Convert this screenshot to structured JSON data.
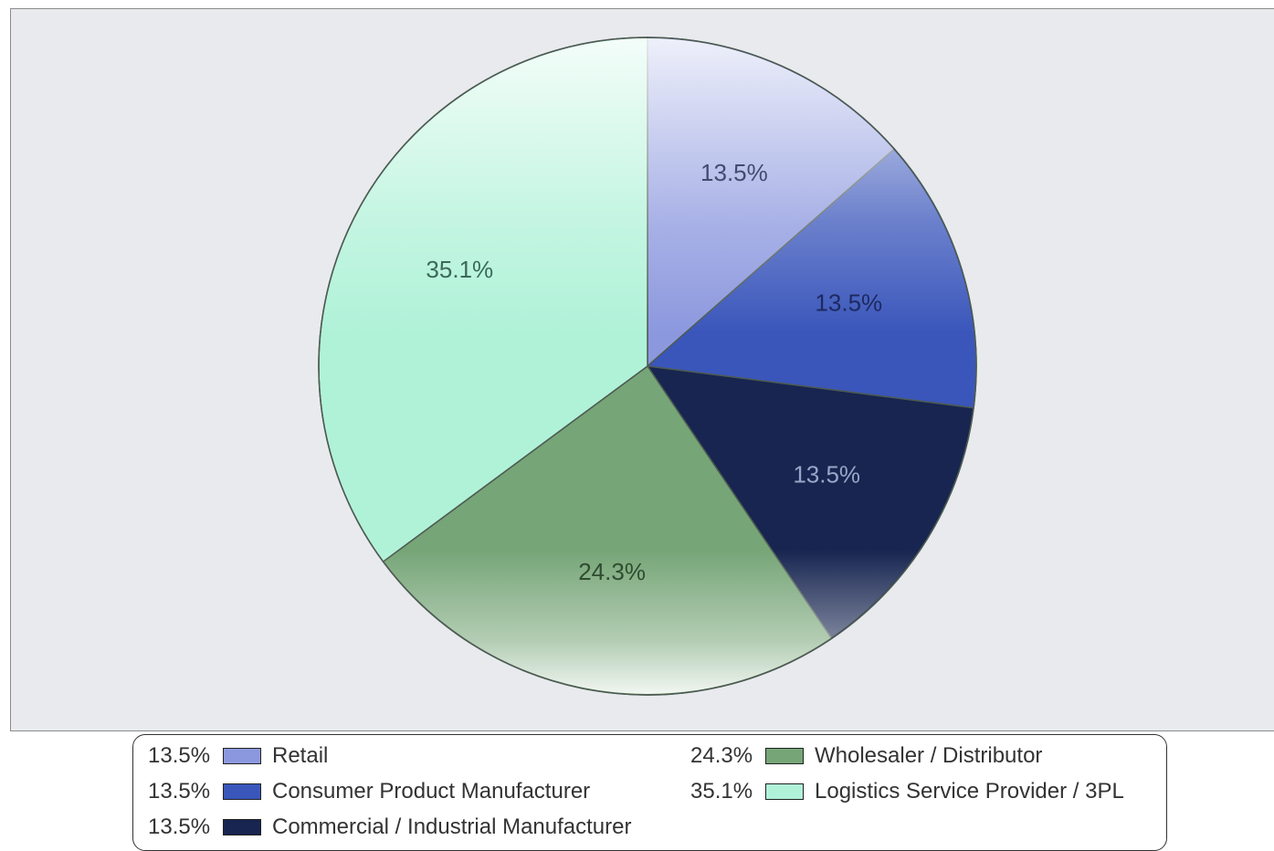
{
  "chart_data": {
    "type": "pie",
    "slices": [
      {
        "label": "Retail",
        "value": 13.5,
        "display": "13.5%",
        "color": "#8c98de",
        "text_color": "#444a70"
      },
      {
        "label": "Consumer Product Manufacturer",
        "value": 13.5,
        "display": "13.5%",
        "color": "#3a56bb",
        "text_color": "#1d2a60"
      },
      {
        "label": "Commercial / Industrial Manufacturer",
        "value": 13.5,
        "display": "13.5%",
        "color": "#172550",
        "text_color": "#9aa6c8"
      },
      {
        "label": "Wholesaler / Distributor",
        "value": 24.3,
        "display": "24.3%",
        "color": "#76a577",
        "text_color": "#2f4c30"
      },
      {
        "label": "Logistics Service Provider / 3PL",
        "value": 35.1,
        "display": "35.1%",
        "color": "#b0f2d8",
        "text_color": "#3c6a58"
      }
    ],
    "legend_position": "bottom"
  }
}
